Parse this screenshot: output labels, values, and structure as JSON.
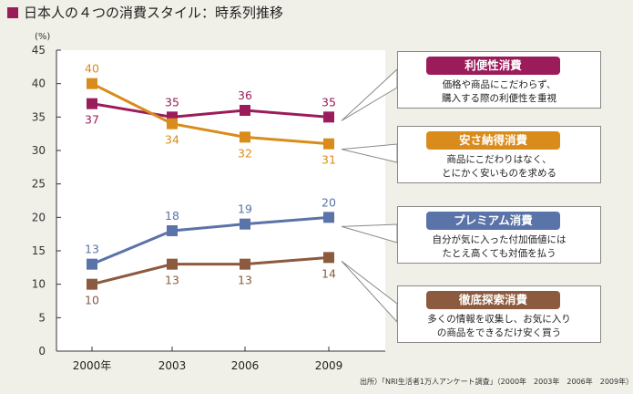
{
  "title": "日本人の４つの消費スタイル：時系列推移",
  "source": "出所）「NRI生活者1万人アンケート調査」（2000年　2003年　2006年　2009年）",
  "chart_data": {
    "type": "line",
    "unit_label": "(%)",
    "categories": [
      "2000年",
      "2003",
      "2006",
      "2009"
    ],
    "ylim": [
      0,
      45
    ],
    "yticks": [
      0,
      5,
      10,
      15,
      20,
      25,
      30,
      35,
      40,
      45
    ],
    "grid": false,
    "series": [
      {
        "name": "利便性消費",
        "values": [
          37,
          35,
          36,
          35
        ],
        "color": "#9b1c5a",
        "label_pos": [
          "below",
          "above",
          "above",
          "above"
        ]
      },
      {
        "name": "安さ納得消費",
        "values": [
          40,
          34,
          32,
          31
        ],
        "color": "#d98c1c",
        "label_pos": [
          "above",
          "below",
          "below",
          "below"
        ]
      },
      {
        "name": "プレミアム消費",
        "values": [
          13,
          18,
          19,
          20
        ],
        "color": "#5a73a8",
        "label_pos": [
          "above",
          "above",
          "above",
          "above"
        ]
      },
      {
        "name": "徹底探索消費",
        "values": [
          10,
          13,
          13,
          14
        ],
        "color": "#8c5a3e",
        "label_pos": [
          "below",
          "below",
          "below",
          "below"
        ]
      }
    ]
  },
  "callouts": [
    {
      "label": "利便性消費",
      "color": "#9b1c5a",
      "lines": [
        "価格や商品にこだわらず、",
        "購入する際の利便性を重視"
      ]
    },
    {
      "label": "安さ納得消費",
      "color": "#d98c1c",
      "lines": [
        "商品にこだわりはなく、",
        "とにかく安いものを求める"
      ]
    },
    {
      "label": "プレミアム消費",
      "color": "#5a73a8",
      "lines": [
        "自分が気に入った付加価値には",
        "たとえ高くても対価を払う"
      ]
    },
    {
      "label": "徹底探索消費",
      "color": "#8c5a3e",
      "lines": [
        "多くの情報を収集し、お気に入り",
        "の商品をできるだけ安く買う"
      ]
    }
  ]
}
